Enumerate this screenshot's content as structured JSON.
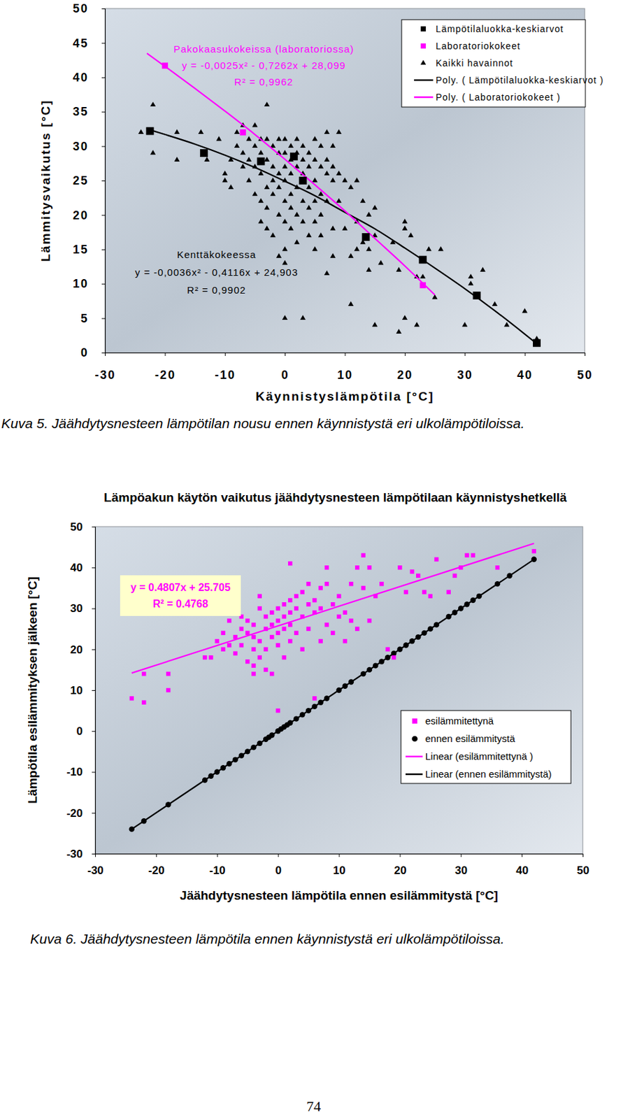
{
  "chart_data": [
    {
      "type": "scatter",
      "x_label": "Käynnistyslämpötila [°C]",
      "y_label": "Lämmitysvaikutus [°C]",
      "caption": "Kuva 5. Jäähdytysnesteen lämpötilan nousu ennen käynnistystä eri ulkolämpötiloissa.",
      "xlim": [
        -30,
        50
      ],
      "xticks": [
        -30,
        -20,
        -10,
        0,
        10,
        20,
        30,
        40,
        50
      ],
      "ylim": [
        0,
        50
      ],
      "yticks": [
        0,
        5,
        10,
        15,
        20,
        25,
        30,
        35,
        40,
        45,
        50
      ],
      "grid": false,
      "legend": "upper right",
      "annotations": [
        {
          "lines": [
            "Pakokaasukokeissa (laboratoriossa)",
            "y = -0,0025x² - 0,7262x + 28,099",
            "R² = 0,9962"
          ],
          "color": "#ff00ff"
        },
        {
          "lines": [
            "Kenttäkokeessa",
            "y = -0,0036x² - 0,4116x + 24,903",
            "R² = 0,9902"
          ],
          "color": "#000000"
        }
      ],
      "series": [
        {
          "name": "Lämpötilaluokka-keskiarvot",
          "type": "scatter",
          "marker": "square",
          "color": "#000000",
          "x": [
            -22.5,
            -13.5,
            -4,
            1.5,
            3,
            13.5,
            23,
            32,
            42
          ],
          "values": [
            32.2,
            29,
            27.8,
            28.5,
            25,
            16.8,
            13.5,
            8.3,
            1.4
          ]
        },
        {
          "name": "Laboratoriokokeet",
          "type": "scatter",
          "marker": "square",
          "color": "#ff00ff",
          "x": [
            -20,
            -7,
            23
          ],
          "values": [
            41.7,
            32,
            9.8
          ]
        },
        {
          "name": "Kaikki havainnot",
          "type": "scatter",
          "marker": "triangle",
          "color": "#000000",
          "x": [
            -22,
            -24,
            -22,
            -18,
            -18,
            -14,
            -13,
            -11,
            -10,
            -10,
            -9,
            -9,
            -8,
            -8,
            -7,
            -7,
            -7,
            -6,
            -6,
            -6,
            -5,
            -5,
            -5,
            -5,
            -4,
            -4,
            -4,
            -4,
            -4,
            -3,
            -3,
            -3,
            -3,
            -3,
            -3,
            -2,
            -2,
            -2,
            -2,
            -2,
            -1,
            -1,
            -1,
            -1,
            -1,
            -1,
            0,
            0,
            0,
            0,
            0,
            0,
            0,
            0,
            0,
            1,
            1,
            1,
            1,
            1,
            1,
            2,
            2,
            2,
            2,
            2,
            2,
            3,
            3,
            3,
            3,
            3,
            3,
            4,
            4,
            4,
            4,
            4,
            5,
            5,
            5,
            5,
            5,
            5,
            6,
            6,
            6,
            6,
            6,
            7,
            7,
            7,
            7,
            7,
            8,
            8,
            8,
            8,
            8,
            9,
            9,
            9,
            10,
            10,
            11,
            11,
            11,
            12,
            12,
            12,
            13,
            13,
            14,
            14,
            14,
            15,
            15,
            15,
            16,
            18,
            19,
            19,
            20,
            20,
            20,
            21,
            22,
            22,
            23,
            24,
            25,
            26,
            30,
            31,
            31,
            33,
            35,
            37,
            40,
            42
          ],
          "values": [
            36,
            32,
            29,
            32,
            28,
            32,
            28,
            31,
            25,
            26,
            28,
            24,
            32,
            30,
            33,
            29,
            27,
            31,
            28,
            25,
            33,
            30,
            27,
            23,
            31,
            29,
            26,
            22,
            19,
            36,
            31,
            28,
            24,
            21,
            18,
            30,
            27,
            25,
            23,
            17,
            31,
            29,
            26,
            24,
            20,
            14,
            31,
            29,
            27,
            25,
            22,
            19,
            15,
            13,
            5,
            30,
            28,
            26,
            23,
            21,
            18,
            31,
            29,
            27,
            24,
            20,
            16,
            30,
            28,
            26,
            22,
            19,
            5,
            29,
            27,
            24,
            21,
            17,
            31,
            28,
            25,
            22,
            19,
            15,
            30,
            27,
            23,
            20,
            17,
            32,
            28,
            26,
            22,
            11.5,
            30,
            27,
            25,
            18,
            14,
            32,
            26,
            22,
            25,
            18,
            24,
            14,
            7,
            25,
            19,
            15,
            22,
            16,
            20,
            15,
            12,
            21,
            17,
            4,
            13,
            16,
            12,
            3,
            19,
            18,
            5,
            17,
            11,
            4,
            11,
            15,
            8,
            15,
            4,
            11,
            10,
            12,
            7,
            4,
            6,
            2
          ]
        },
        {
          "name": "Poly. ( Lämpötilaluokka-keskiarvot )",
          "type": "line",
          "line_style": "solid",
          "color": "#000000",
          "x": [
            -23,
            -20,
            -15,
            -10,
            -5,
            0,
            5,
            10,
            15,
            20,
            25,
            30,
            35,
            42
          ],
          "values": [
            32.5,
            31.7,
            30.3,
            28.7,
            26.9,
            24.9,
            22.8,
            20.4,
            18.0,
            15.2,
            12.3,
            9.3,
            6.1,
            1.3
          ]
        },
        {
          "name": "Poly. ( Laboratoriokokeet )",
          "type": "line",
          "line_style": "solid",
          "color": "#ff00ff",
          "x": [
            -23,
            -20,
            -15,
            -10,
            -5,
            0,
            5,
            10,
            15,
            20,
            25
          ],
          "values": [
            43.5,
            41.6,
            38.4,
            35.1,
            31.7,
            28.1,
            24.4,
            20.6,
            16.6,
            12.6,
            8.4
          ]
        }
      ]
    },
    {
      "type": "scatter",
      "title": "Lämpöakun käytön vaikutus jäähdytysnesteen lämpötilaan käynnistyshetkellä",
      "x_label": "Jäähdytysnesteen lämpötila ennen esilämmitystä [°C]",
      "y_label": "Lämpötila esilämmityksen jälkeen [°C]",
      "caption": "Kuva 6. Jäähdytysnesteen lämpötila ennen käynnistystä eri ulkolämpötiloissa.",
      "xlim": [
        -30,
        50
      ],
      "xticks": [
        -30,
        -20,
        -10,
        0,
        10,
        20,
        30,
        40,
        50
      ],
      "ylim": [
        -30,
        50
      ],
      "yticks": [
        -30,
        -20,
        -10,
        0,
        10,
        20,
        30,
        40,
        50
      ],
      "grid": false,
      "legend": "lower right",
      "annotations": [
        {
          "lines": [
            "y = 0.4807x + 25.705",
            "R² = 0.4768"
          ],
          "color": "#ff00ff"
        }
      ],
      "series": [
        {
          "name": "esilämmitettynä",
          "type": "scatter",
          "marker": "square",
          "color": "#ff00ff",
          "x": [
            -24,
            -22,
            -22,
            -18,
            -18,
            -12,
            -11,
            -10,
            -9,
            -9,
            -8,
            -8,
            -7,
            -7,
            -6,
            -6,
            -6,
            -5,
            -5,
            -5,
            -4,
            -4,
            -4,
            -4,
            -4,
            -3,
            -3,
            -3,
            -3,
            -2,
            -2,
            -2,
            -2,
            -1,
            -1,
            -1,
            -1,
            0,
            0,
            0,
            0,
            0,
            1,
            1,
            1,
            1,
            2,
            2,
            2,
            2,
            2,
            3,
            3,
            3,
            4,
            4,
            4,
            5,
            5,
            5,
            6,
            6,
            6,
            7,
            7,
            7,
            8,
            8,
            8,
            9,
            9,
            10,
            10,
            11,
            11,
            12,
            12,
            13,
            13,
            14,
            14,
            15,
            15,
            16,
            17,
            18,
            19,
            20,
            21,
            22,
            23,
            24,
            25,
            26,
            28,
            29,
            30,
            31,
            32,
            36,
            42
          ],
          "values": [
            8,
            7,
            14,
            14,
            10,
            18,
            18,
            22,
            20,
            24,
            21,
            27,
            23,
            19,
            25,
            28,
            21,
            17,
            24,
            27,
            14,
            16,
            20,
            23,
            26,
            30,
            33,
            22,
            18,
            25,
            28,
            20,
            15,
            26,
            29,
            23,
            14,
            27,
            30,
            24,
            21,
            5,
            28,
            31,
            25,
            18,
            29,
            32,
            26,
            41,
            22,
            30,
            33,
            24,
            28,
            34,
            20,
            31,
            36,
            25,
            32,
            29,
            8,
            35,
            30,
            22,
            36,
            40,
            26,
            31,
            24,
            33,
            28,
            29,
            22,
            36,
            27,
            40,
            25,
            43,
            35,
            40,
            27,
            33,
            36,
            20,
            18,
            40,
            34,
            39,
            38,
            34,
            33,
            42,
            34,
            38,
            40,
            43,
            43,
            40,
            44
          ]
        },
        {
          "name": "ennen esilämmitystä",
          "type": "scatter",
          "marker": "circle",
          "color": "#000000",
          "x": [
            -24,
            -22,
            -18,
            -12,
            -11,
            -10,
            -9,
            -8,
            -7,
            -6,
            -5,
            -4,
            -3,
            -2,
            -1.5,
            -1,
            0,
            0.5,
            1,
            1.5,
            2,
            3,
            4,
            5,
            6,
            7,
            8,
            10,
            11,
            12,
            14,
            15,
            16,
            17,
            18,
            19,
            20,
            21,
            22,
            23,
            24,
            25,
            26,
            28,
            29,
            30,
            31,
            32,
            33,
            36,
            38,
            42
          ],
          "values": [
            -24,
            -22,
            -18,
            -12,
            -11,
            -10,
            -9,
            -8,
            -7,
            -6,
            -5,
            -4,
            -3,
            -2,
            -1.5,
            -1,
            0,
            0.5,
            1,
            1.5,
            2,
            3,
            4,
            5,
            6,
            7,
            8,
            10,
            11,
            12,
            14,
            15,
            16,
            17,
            18,
            19,
            20,
            21,
            22,
            23,
            24,
            25,
            26,
            28,
            29,
            30,
            31,
            32,
            33,
            36,
            38,
            42
          ]
        },
        {
          "name": "Linear (esilämmitettynä )",
          "type": "line",
          "line_style": "solid",
          "color": "#ff00ff",
          "x": [
            -24,
            42
          ],
          "values": [
            14.2,
            45.9
          ]
        },
        {
          "name": "Linear (ennen esilämmitystä)",
          "type": "line",
          "line_style": "solid",
          "color": "#000000",
          "x": [
            -24,
            42
          ],
          "values": [
            -24,
            42
          ]
        }
      ]
    }
  ],
  "page_number": 74
}
